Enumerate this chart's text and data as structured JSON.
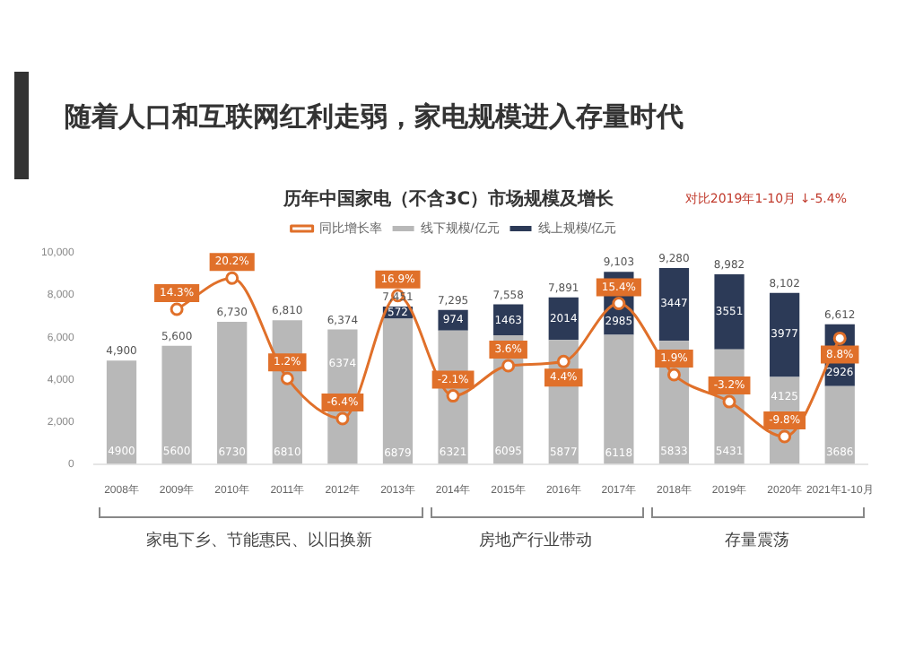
{
  "chart_data": {
    "type": "bar",
    "title": "随着人口和互联网红利走弱，家电规模进入存量时代",
    "subtitle": "历年中国家电（不含3C）市场规模及增长",
    "categories": [
      "2008年",
      "2009年",
      "2010年",
      "2011年",
      "2012年",
      "2013年",
      "2014年",
      "2015年",
      "2016年",
      "2017年",
      "2018年",
      "2019年",
      "2020年",
      "2021年1-10月"
    ],
    "stacked": true,
    "data_labels": true,
    "legend": "top",
    "marker": "circle",
    "series": [
      {
        "name": "线下规模/亿元",
        "color": "#b8b8b8",
        "values": [
          4900,
          5600,
          6730,
          6810,
          6374,
          6879,
          6321,
          6095,
          5877,
          6118,
          5833,
          5431,
          4125,
          3686
        ]
      },
      {
        "name": "线上规模/亿元",
        "color": "#2c3a57",
        "values": [
          null,
          null,
          null,
          null,
          null,
          572,
          974,
          1463,
          2014,
          2985,
          3447,
          3551,
          3977,
          2926
        ]
      },
      {
        "name": "同比增长率",
        "type": "line",
        "axis": "y2",
        "color": "#e0702a",
        "values": [
          null,
          14.3,
          20.2,
          1.2,
          -6.4,
          16.9,
          -2.1,
          3.6,
          4.4,
          15.4,
          1.9,
          -3.2,
          -9.8,
          8.8
        ],
        "value_labels": [
          null,
          "14.3%",
          "20.2%",
          "1.2%",
          "-6.4%",
          "16.9%",
          "-2.1%",
          "3.6%",
          "4.4%",
          "15.4%",
          "1.9%",
          "-3.2%",
          "-9.8%",
          "8.8%"
        ]
      }
    ],
    "totals": [
      "4,900",
      "5,600",
      "6,730",
      "6,810",
      "6,374",
      "7,451",
      "7,295",
      "7,558",
      "7,891",
      "9,103",
      "9,280",
      "8,982",
      "8,102",
      "6,612"
    ],
    "ylim": [
      0,
      10000
    ],
    "yticks": [
      0,
      {
        "value": 2000,
        "label": "2,000"
      },
      {
        "value": 4000,
        "label": "4,000"
      },
      {
        "value": 6000,
        "label": "6,000"
      },
      {
        "value": 8000,
        "label": "8,000"
      },
      {
        "value": 10000,
        "label": "10,000"
      }
    ],
    "y2lim": [
      -15,
      25
    ],
    "annotations": [
      "对比2019年1-10月 ↓-5.4%",
      "家电下乡、节能惠民、以旧换新",
      "房地产行业带动",
      "存量震荡"
    ]
  }
}
